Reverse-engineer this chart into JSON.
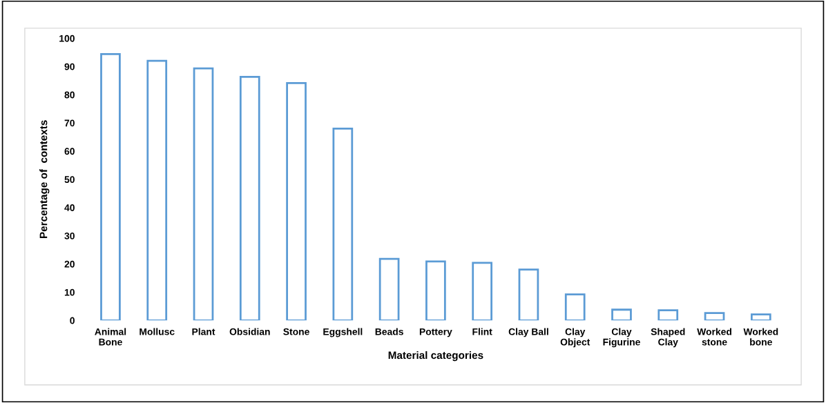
{
  "chart_data": {
    "type": "bar",
    "xlabel": "Material categories",
    "ylabel": "Percentage of  contexts",
    "categories": [
      "Animal\nBone",
      "Mollusc",
      "Plant",
      "Obsidian",
      "Stone",
      "Eggshell",
      "Beads",
      "Pottery",
      "Flint",
      "Clay Ball",
      "Clay\nObject",
      "Clay\nFigurine",
      "Shaped\nClay",
      "Worked\nstone",
      "Worked\nbone"
    ],
    "values": [
      94.4,
      92,
      89.3,
      86.3,
      84.1,
      68,
      21.8,
      20.9,
      20.4,
      18,
      9.2,
      3.8,
      3.6,
      2.6,
      2.1
    ],
    "color": "#5b9bd5",
    "ylim": [
      0,
      100
    ],
    "yticks": [
      0,
      10,
      20,
      30,
      40,
      50,
      60,
      70,
      80,
      90,
      100
    ],
    "grid": false,
    "legend": false
  }
}
